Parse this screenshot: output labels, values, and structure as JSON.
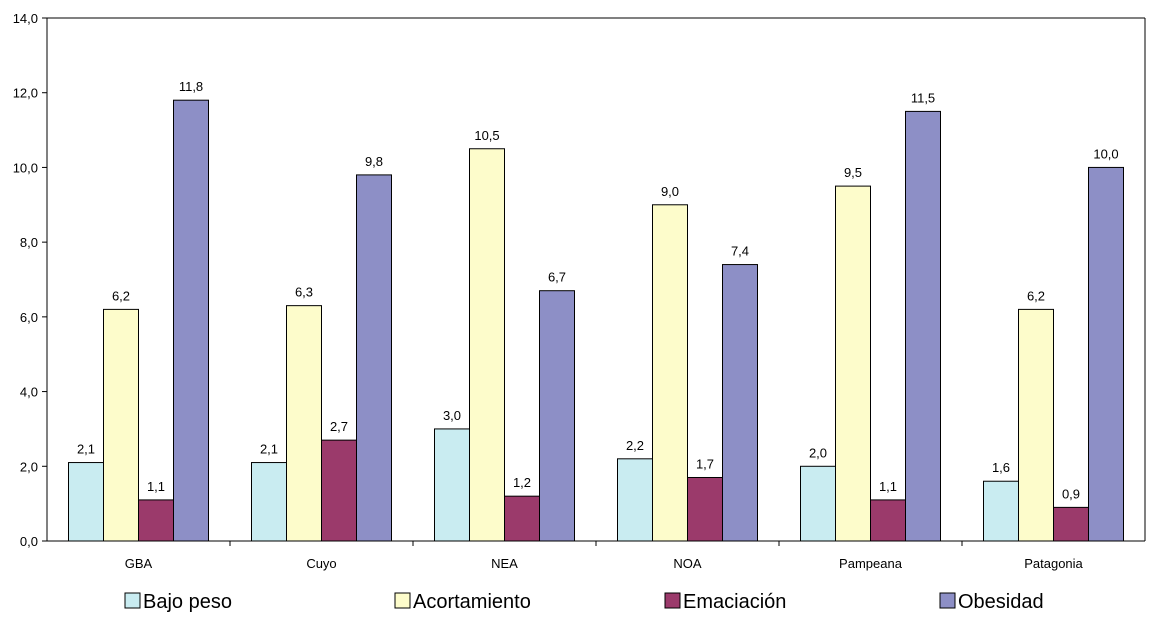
{
  "chart_data": {
    "type": "bar",
    "categories": [
      "GBA",
      "Cuyo",
      "NEA",
      "NOA",
      "Pampeana",
      "Patagonia"
    ],
    "series": [
      {
        "name": "Bajo peso",
        "color": "#c9ecf1",
        "values": [
          2.1,
          2.1,
          3.0,
          2.2,
          2.0,
          1.6
        ],
        "labels": [
          "2,1",
          "2,1",
          "3,0",
          "2,2",
          "2,0",
          "1,6"
        ]
      },
      {
        "name": "Acortamiento",
        "color": "#fdfccb",
        "values": [
          6.2,
          6.3,
          10.5,
          9.0,
          9.5,
          6.2
        ],
        "labels": [
          "6,2",
          "6,3",
          "10,5",
          "9,0",
          "9,5",
          "6,2"
        ]
      },
      {
        "name": "Emaciación",
        "color": "#9b3a6b",
        "values": [
          1.1,
          2.7,
          1.2,
          1.7,
          1.1,
          0.9
        ],
        "labels": [
          "1,1",
          "2,7",
          "1,2",
          "1,7",
          "1,1",
          "0,9"
        ]
      },
      {
        "name": "Obesidad",
        "color": "#8d8fc6",
        "values": [
          11.8,
          9.8,
          6.7,
          7.4,
          11.5,
          10.0
        ],
        "labels": [
          "11,8",
          "9,8",
          "6,7",
          "7,4",
          "11,5",
          "10,0"
        ]
      }
    ],
    "y_ticks": [
      "0,0",
      "2,0",
      "4,0",
      "6,0",
      "8,0",
      "10,0",
      "12,0",
      "14,0"
    ],
    "ylim": [
      0,
      14
    ],
    "grid": false,
    "legend_position": "bottom",
    "title": "",
    "xlabel": "",
    "ylabel": ""
  }
}
